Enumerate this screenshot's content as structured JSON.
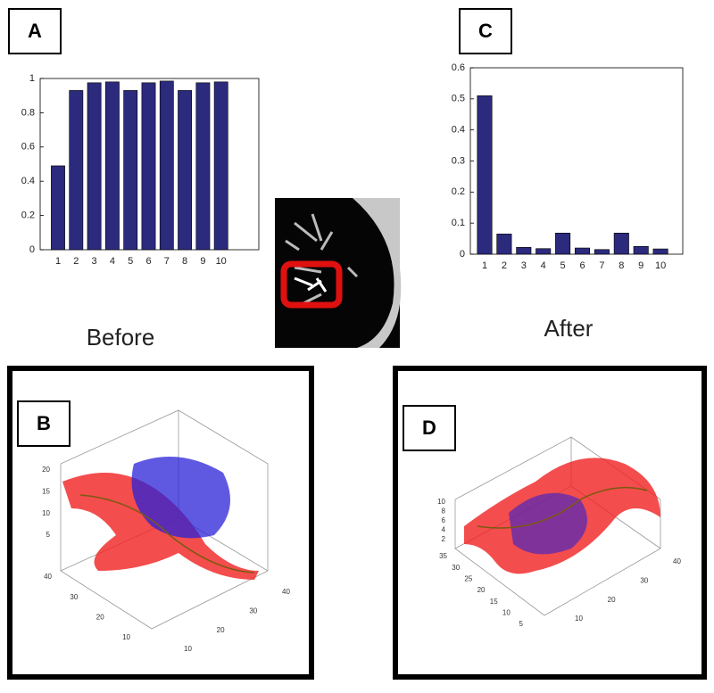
{
  "chart_data": [
    {
      "type": "bar",
      "categories": [
        "1",
        "2",
        "3",
        "4",
        "5",
        "6",
        "7",
        "8",
        "9",
        "10"
      ],
      "values": [
        0.49,
        0.93,
        0.975,
        0.98,
        0.93,
        0.975,
        0.985,
        0.93,
        0.975,
        0.98
      ],
      "color": "#2b2a7c",
      "ylim": [
        0,
        1
      ],
      "yticks": [
        0,
        0.2,
        0.4,
        0.6,
        0.8,
        1
      ]
    },
    {
      "type": "bar",
      "categories": [
        "1",
        "2",
        "3",
        "4",
        "5",
        "6",
        "7",
        "8",
        "9",
        "10"
      ],
      "values": [
        0.51,
        0.065,
        0.022,
        0.018,
        0.068,
        0.02,
        0.015,
        0.068,
        0.025,
        0.017
      ],
      "color": "#2b2a7c",
      "ylim": [
        0,
        0.6
      ],
      "yticks": [
        0,
        0.1,
        0.2,
        0.3,
        0.4,
        0.5,
        0.6
      ]
    }
  ],
  "labels": {
    "a": "A",
    "b": "B",
    "c": "C",
    "d": "D",
    "before": "Before",
    "after": "After"
  },
  "views": [
    {
      "z_ticks": [
        "20",
        "15",
        "10",
        "5"
      ],
      "left_ticks": [
        "40",
        "30",
        "20",
        "10"
      ],
      "right_ticks": [
        "10",
        "20",
        "30",
        "40"
      ]
    },
    {
      "z_ticks": [
        "10",
        "8",
        "6",
        "4",
        "2"
      ],
      "left_ticks": [
        "35",
        "30",
        "25",
        "20",
        "15",
        "10",
        "5"
      ],
      "right_ticks": [
        "10",
        "20",
        "30",
        "40"
      ]
    }
  ]
}
